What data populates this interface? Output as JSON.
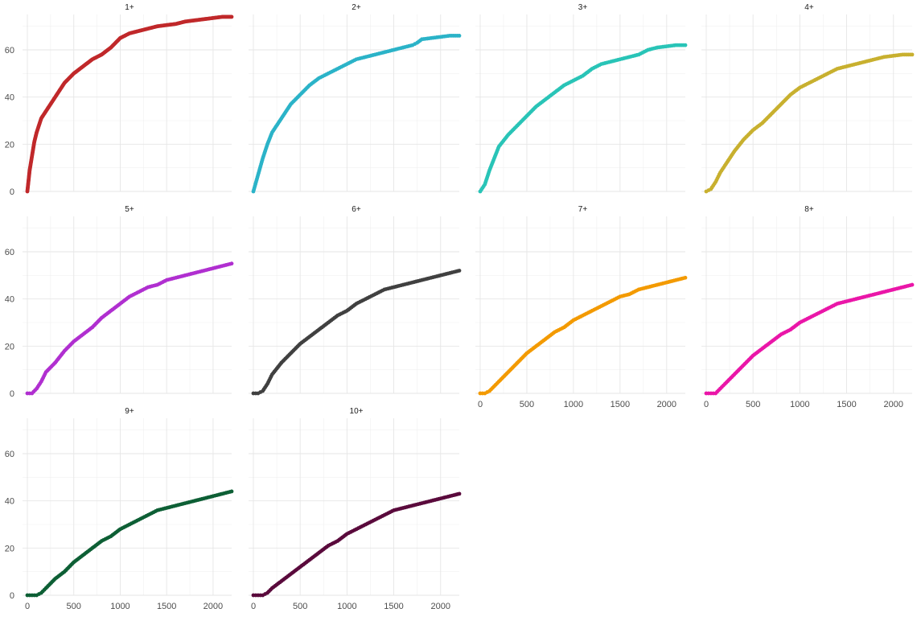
{
  "chart_data": {
    "type": "scatter",
    "facet_layout": {
      "rows": 3,
      "cols": 4
    },
    "xlim": [
      0,
      2200
    ],
    "ylim": [
      0,
      75
    ],
    "x_ticks": [
      0,
      500,
      1000,
      1500,
      2000
    ],
    "x_tick_labels": [
      "0",
      "500",
      "1000",
      "1500",
      "2000"
    ],
    "y_ticks": [
      0,
      20,
      40,
      60
    ],
    "y_tick_labels": [
      "0",
      "20",
      "40",
      "60"
    ],
    "grid": true,
    "xlabel": "",
    "ylabel": "",
    "panels": [
      {
        "title": "1+",
        "color": "#c0282a",
        "line": true,
        "points": [
          [
            0,
            0
          ],
          [
            25,
            9
          ],
          [
            50,
            15
          ],
          [
            75,
            21
          ],
          [
            100,
            25
          ],
          [
            125,
            28
          ],
          [
            150,
            31
          ],
          [
            200,
            34
          ],
          [
            250,
            37
          ],
          [
            300,
            40
          ],
          [
            350,
            43
          ],
          [
            400,
            46
          ],
          [
            450,
            48
          ],
          [
            500,
            50
          ],
          [
            600,
            53
          ],
          [
            700,
            56
          ],
          [
            800,
            58
          ],
          [
            900,
            61
          ],
          [
            1000,
            65
          ],
          [
            1100,
            67
          ],
          [
            1200,
            68
          ],
          [
            1300,
            69
          ],
          [
            1400,
            70
          ],
          [
            1500,
            70.5
          ],
          [
            1600,
            71
          ],
          [
            1700,
            72
          ],
          [
            1800,
            72.5
          ],
          [
            1900,
            73
          ],
          [
            2000,
            73.5
          ],
          [
            2100,
            74
          ],
          [
            2200,
            74
          ]
        ]
      },
      {
        "title": "2+",
        "color": "#2bb3c8",
        "points": [
          [
            0,
            0
          ],
          [
            50,
            7
          ],
          [
            100,
            14
          ],
          [
            150,
            20
          ],
          [
            200,
            25
          ],
          [
            300,
            31
          ],
          [
            400,
            37
          ],
          [
            500,
            41
          ],
          [
            600,
            45
          ],
          [
            700,
            48
          ],
          [
            800,
            50
          ],
          [
            900,
            52
          ],
          [
            1000,
            54
          ],
          [
            1100,
            56
          ],
          [
            1200,
            57
          ],
          [
            1300,
            58
          ],
          [
            1400,
            59
          ],
          [
            1500,
            60
          ],
          [
            1600,
            61
          ],
          [
            1700,
            62
          ],
          [
            1750,
            63
          ],
          [
            1800,
            64.5
          ],
          [
            1900,
            65
          ],
          [
            2000,
            65.5
          ],
          [
            2100,
            66
          ],
          [
            2200,
            66
          ]
        ]
      },
      {
        "title": "3+",
        "color": "#29c4b7",
        "points": [
          [
            0,
            0
          ],
          [
            50,
            3
          ],
          [
            100,
            9
          ],
          [
            150,
            14
          ],
          [
            200,
            19
          ],
          [
            300,
            24
          ],
          [
            400,
            28
          ],
          [
            500,
            32
          ],
          [
            600,
            36
          ],
          [
            700,
            39
          ],
          [
            800,
            42
          ],
          [
            900,
            45
          ],
          [
            1000,
            47
          ],
          [
            1100,
            49
          ],
          [
            1200,
            52
          ],
          [
            1300,
            54
          ],
          [
            1400,
            55
          ],
          [
            1500,
            56
          ],
          [
            1600,
            57
          ],
          [
            1700,
            58
          ],
          [
            1800,
            60
          ],
          [
            1900,
            61
          ],
          [
            2000,
            61.5
          ],
          [
            2100,
            62
          ],
          [
            2200,
            62
          ]
        ]
      },
      {
        "title": "4+",
        "color": "#c8b02f",
        "points": [
          [
            0,
            0
          ],
          [
            50,
            1
          ],
          [
            100,
            4
          ],
          [
            150,
            8
          ],
          [
            200,
            11
          ],
          [
            300,
            17
          ],
          [
            400,
            22
          ],
          [
            500,
            26
          ],
          [
            600,
            29
          ],
          [
            700,
            33
          ],
          [
            800,
            37
          ],
          [
            900,
            41
          ],
          [
            1000,
            44
          ],
          [
            1100,
            46
          ],
          [
            1200,
            48
          ],
          [
            1300,
            50
          ],
          [
            1400,
            52
          ],
          [
            1500,
            53
          ],
          [
            1600,
            54
          ],
          [
            1700,
            55
          ],
          [
            1800,
            56
          ],
          [
            1900,
            57
          ],
          [
            2000,
            57.5
          ],
          [
            2100,
            58
          ],
          [
            2200,
            58
          ]
        ]
      },
      {
        "title": "5+",
        "color": "#b02fd0",
        "points": [
          [
            0,
            0
          ],
          [
            50,
            0
          ],
          [
            100,
            2
          ],
          [
            150,
            5
          ],
          [
            200,
            9
          ],
          [
            300,
            13
          ],
          [
            400,
            18
          ],
          [
            500,
            22
          ],
          [
            600,
            25
          ],
          [
            700,
            28
          ],
          [
            800,
            32
          ],
          [
            900,
            35
          ],
          [
            1000,
            38
          ],
          [
            1100,
            41
          ],
          [
            1200,
            43
          ],
          [
            1300,
            45
          ],
          [
            1400,
            46
          ],
          [
            1500,
            48
          ],
          [
            1600,
            49
          ],
          [
            1700,
            50
          ],
          [
            1800,
            51
          ],
          [
            1900,
            52
          ],
          [
            2000,
            53
          ],
          [
            2100,
            54
          ],
          [
            2200,
            55
          ]
        ]
      },
      {
        "title": "6+",
        "color": "#404040",
        "points": [
          [
            0,
            0
          ],
          [
            50,
            0
          ],
          [
            100,
            1
          ],
          [
            150,
            4
          ],
          [
            200,
            8
          ],
          [
            300,
            13
          ],
          [
            400,
            17
          ],
          [
            500,
            21
          ],
          [
            600,
            24
          ],
          [
            700,
            27
          ],
          [
            800,
            30
          ],
          [
            900,
            33
          ],
          [
            1000,
            35
          ],
          [
            1100,
            38
          ],
          [
            1200,
            40
          ],
          [
            1300,
            42
          ],
          [
            1400,
            44
          ],
          [
            1500,
            45
          ],
          [
            1600,
            46
          ],
          [
            1700,
            47
          ],
          [
            1800,
            48
          ],
          [
            1900,
            49
          ],
          [
            2000,
            50
          ],
          [
            2100,
            51
          ],
          [
            2200,
            52
          ]
        ]
      },
      {
        "title": "7+",
        "color": "#f39a00",
        "points": [
          [
            0,
            0
          ],
          [
            50,
            0
          ],
          [
            100,
            1
          ],
          [
            150,
            3
          ],
          [
            200,
            5
          ],
          [
            300,
            9
          ],
          [
            400,
            13
          ],
          [
            500,
            17
          ],
          [
            600,
            20
          ],
          [
            700,
            23
          ],
          [
            800,
            26
          ],
          [
            900,
            28
          ],
          [
            1000,
            31
          ],
          [
            1100,
            33
          ],
          [
            1200,
            35
          ],
          [
            1300,
            37
          ],
          [
            1400,
            39
          ],
          [
            1500,
            41
          ],
          [
            1600,
            42
          ],
          [
            1700,
            44
          ],
          [
            1800,
            45
          ],
          [
            1900,
            46
          ],
          [
            2000,
            47
          ],
          [
            2100,
            48
          ],
          [
            2200,
            49
          ]
        ]
      },
      {
        "title": "8+",
        "color": "#ea16a8",
        "points": [
          [
            0,
            0
          ],
          [
            50,
            0
          ],
          [
            100,
            0
          ],
          [
            150,
            2
          ],
          [
            200,
            4
          ],
          [
            300,
            8
          ],
          [
            400,
            12
          ],
          [
            500,
            16
          ],
          [
            600,
            19
          ],
          [
            700,
            22
          ],
          [
            800,
            25
          ],
          [
            900,
            27
          ],
          [
            1000,
            30
          ],
          [
            1100,
            32
          ],
          [
            1200,
            34
          ],
          [
            1300,
            36
          ],
          [
            1400,
            38
          ],
          [
            1500,
            39
          ],
          [
            1600,
            40
          ],
          [
            1700,
            41
          ],
          [
            1800,
            42
          ],
          [
            1900,
            43
          ],
          [
            2000,
            44
          ],
          [
            2100,
            45
          ],
          [
            2200,
            46
          ]
        ]
      },
      {
        "title": "9+",
        "color": "#0d5f35",
        "points": [
          [
            0,
            0
          ],
          [
            50,
            0
          ],
          [
            100,
            0
          ],
          [
            150,
            1
          ],
          [
            200,
            3
          ],
          [
            300,
            7
          ],
          [
            400,
            10
          ],
          [
            500,
            14
          ],
          [
            600,
            17
          ],
          [
            700,
            20
          ],
          [
            800,
            23
          ],
          [
            900,
            25
          ],
          [
            1000,
            28
          ],
          [
            1100,
            30
          ],
          [
            1200,
            32
          ],
          [
            1300,
            34
          ],
          [
            1400,
            36
          ],
          [
            1500,
            37
          ],
          [
            1600,
            38
          ],
          [
            1700,
            39
          ],
          [
            1800,
            40
          ],
          [
            1900,
            41
          ],
          [
            2000,
            42
          ],
          [
            2100,
            43
          ],
          [
            2200,
            44
          ]
        ]
      },
      {
        "title": "10+",
        "color": "#5a0a3c",
        "points": [
          [
            0,
            0
          ],
          [
            50,
            0
          ],
          [
            100,
            0
          ],
          [
            150,
            1
          ],
          [
            200,
            3
          ],
          [
            300,
            6
          ],
          [
            400,
            9
          ],
          [
            500,
            12
          ],
          [
            600,
            15
          ],
          [
            700,
            18
          ],
          [
            800,
            21
          ],
          [
            900,
            23
          ],
          [
            1000,
            26
          ],
          [
            1100,
            28
          ],
          [
            1200,
            30
          ],
          [
            1300,
            32
          ],
          [
            1400,
            34
          ],
          [
            1500,
            36
          ],
          [
            1600,
            37
          ],
          [
            1700,
            38
          ],
          [
            1800,
            39
          ],
          [
            1900,
            40
          ],
          [
            2000,
            41
          ],
          [
            2100,
            42
          ],
          [
            2200,
            43
          ]
        ]
      }
    ]
  }
}
